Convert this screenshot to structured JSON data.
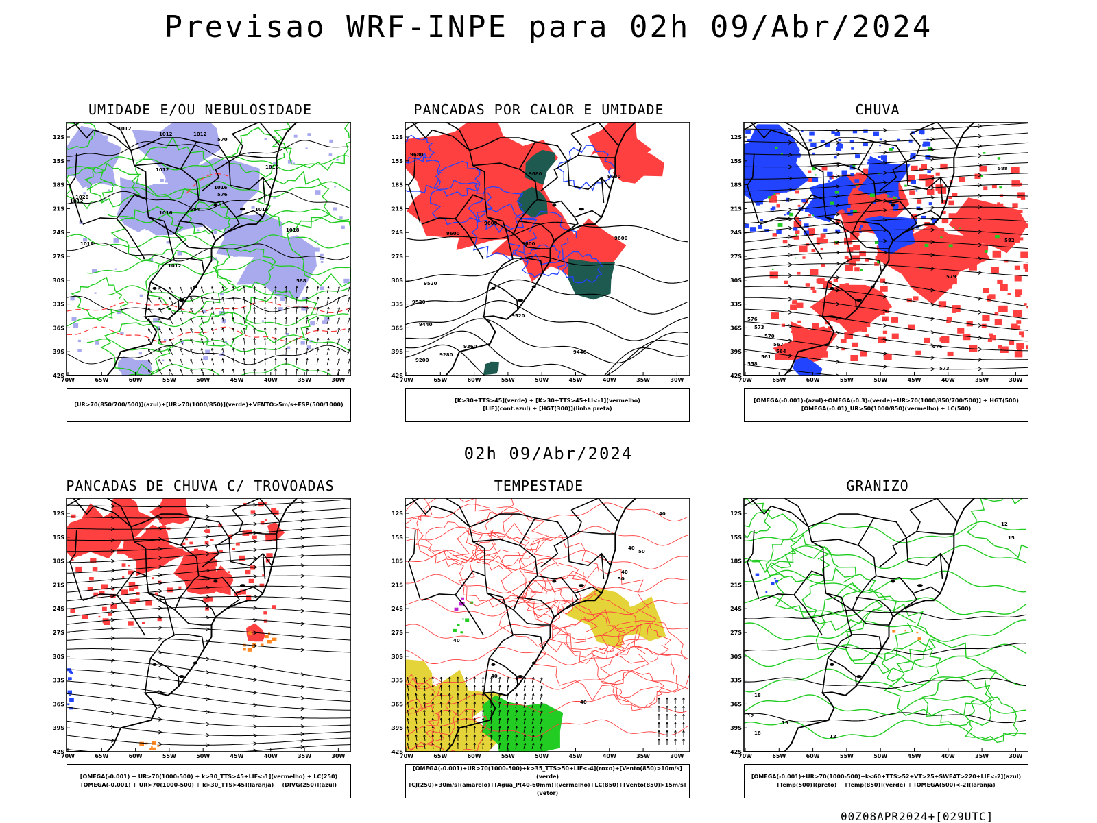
{
  "title": "Previsao WRF-INPE  para 02h 09/Abr/2024",
  "mid_time": "02h 09/Abr/2024",
  "footer": "00Z08APR2024+[029UTC]",
  "axes": {
    "lat_labels": [
      "12S",
      "15S",
      "18S",
      "21S",
      "24S",
      "27S",
      "30S",
      "33S",
      "36S",
      "39S",
      "42S"
    ],
    "lon_labels": [
      "70W",
      "65W",
      "60W",
      "55W",
      "50W",
      "45W",
      "40W",
      "35W",
      "30W"
    ]
  },
  "colors": {
    "blue_shade": "#a9a9ee",
    "green": "#22cc22",
    "red": "#ff4040",
    "blue": "#2244ff",
    "dark_green": "#1e5a50",
    "yellow": "#e4d43a",
    "orange": "#ff8822",
    "purple": "#bb22cc"
  },
  "panels": [
    {
      "id": "umidade",
      "title": "UMIDADE E/OU NEBULOSIDADE",
      "legend": [
        "[UR>70(850/700/500)](azul)+[UR>70(1000/850)](verde)+VENTO>5m/s+ESP(500/1000)"
      ],
      "contour_labels": [
        "1012",
        "1012",
        "1012",
        "1012",
        "1016",
        "1016",
        "1016",
        "1016",
        "1012",
        "1020",
        "1016",
        "570",
        "576",
        "584",
        "1012",
        "1018",
        "588"
      ]
    },
    {
      "id": "pancadas-calor",
      "title": "PANCADAS POR CALOR E UMIDADE",
      "legend": [
        "[K>30+TTS>45](verde)  +  [K>30+TTS>45+LI<-1](vermelho)",
        "[LIF](cont.azul)  +  [HGT(300)](linha preta)"
      ],
      "contour_labels": [
        "9680",
        "9680",
        "9680",
        "9600",
        "9600",
        "9600",
        "9600",
        "9520",
        "9520",
        "9520",
        "9440",
        "9440",
        "9360",
        "9280",
        "9200"
      ]
    },
    {
      "id": "chuva",
      "title": "CHUVA",
      "legend": [
        "[OMEGA(-0.001)-(azul)+OMEGA(-0.3)-(verde)+UR>70(1000/850/700/500)]  +  HGT(500)",
        "[OMEGA(-0.01)_UR>50(1000/850)(vermelho)  +  LC(500)"
      ],
      "contour_labels": [
        "588",
        "582",
        "579",
        "576",
        "573",
        "570",
        "567",
        "564",
        "561",
        "558",
        "576",
        "573"
      ]
    },
    {
      "id": "trovoadas",
      "title": "PANCADAS DE CHUVA C/ TROVOADAS",
      "legend": [
        "[OMEGA(-0.001)  +  UR>70(1000-500)  +  k>30_TTS>45+LIF<-1](vermelho)  +  LC(250)",
        "[OMEGA(-0.001)  +  UR>70(1000-500)  +  k>30_TTS>45](laranja)  +  (DIVG(250)](azul)"
      ],
      "contour_labels": []
    },
    {
      "id": "tempestade",
      "title": "TEMPESTADE",
      "legend": [
        "[OMEGA(-0.001)+UR>70(1000-500)+k>35_TTS>50+LIF<-4](roxo)+[Vento(850)>10m/s](verde)",
        "[CJ(250)>30m/s](amarelo)+[Agua_P(40-60mm)](vermelho)+LC(850)+[Vento(850)>15m/s](vetor)"
      ],
      "contour_labels": [
        "40",
        "40",
        "50",
        "40",
        "50",
        "40",
        "40",
        "40"
      ]
    },
    {
      "id": "granizo",
      "title": "GRANIZO",
      "legend": [
        "[OMEGA(-0.001)+UR>70(1000-500)+k<60+TTS>52+VT>25+SWEAT>220+LIF<-2](azul)",
        "[Temp(500)](preto)  +  [Temp(850)](verde)  +  [OMEGA(500)<-2](laranja)"
      ],
      "contour_labels": [
        "12",
        "15",
        "18",
        "12",
        "15",
        "18",
        "12"
      ]
    }
  ]
}
